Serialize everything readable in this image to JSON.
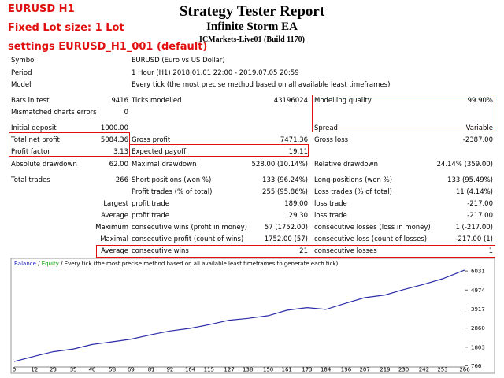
{
  "notes": [
    "EURUSD H1",
    "Fixed Lot size: 1 Lot",
    "settings EURUSD_H1_001 (default)"
  ],
  "header": {
    "title": "Strategy Tester Report",
    "subtitle": "Infinite Storm EA",
    "server": "ICMarkets-Live01 (Build 1170)"
  },
  "table": {
    "rows": [
      [
        "Symbol",
        null,
        "EURUSD (Euro vs US Dollar)",
        null,
        null,
        null
      ],
      [
        "Period",
        null,
        "1 Hour (H1) 2018.01.01 22:00 - 2019.07.05 20:59",
        null,
        null,
        null
      ],
      [
        "Model",
        null,
        "Every tick (the most precise method based on all available least timeframes)",
        null,
        null,
        null
      ],
      [
        "Bars in test",
        "9416",
        "Ticks modelled",
        "43196024",
        "Modelling quality",
        "99.90%"
      ],
      [
        "Mismatched charts errors",
        "0",
        null,
        null,
        null,
        null
      ],
      [
        "Initial deposit",
        "1000.00",
        null,
        null,
        "Spread",
        "Variable"
      ],
      [
        "Total net profit",
        "5084.36",
        "Gross profit",
        "7471.36",
        "Gross loss",
        "-2387.00"
      ],
      [
        "Profit factor",
        "3.13",
        "Expected payoff",
        "19.11",
        null,
        null
      ],
      [
        "Absolute drawdown",
        "62.00",
        "Maximal drawdown",
        "528.00 (10.14%)",
        "Relative drawdown",
        "24.14% (359.00)"
      ],
      [
        "Total trades",
        "266",
        "Short positions (won %)",
        "133 (96.24%)",
        "Long positions (won %)",
        "133 (95.49%)"
      ],
      [
        null,
        null,
        "Profit trades (% of total)",
        "255 (95.86%)",
        "Loss trades (% of total)",
        "11 (4.14%)"
      ],
      [
        null,
        "Largest",
        "profit trade",
        "189.00",
        "loss trade",
        "-217.00"
      ],
      [
        null,
        "Average",
        "profit trade",
        "29.30",
        "loss trade",
        "-217.00"
      ],
      [
        null,
        "Maximum",
        "consecutive wins (profit in money)",
        "57 (1752.00)",
        "consecutive losses (loss in money)",
        "1 (-217.00)"
      ],
      [
        null,
        "Maximal",
        "consecutive profit (count of wins)",
        "1752.00 (57)",
        "consecutive loss (count of losses)",
        "-217.00 (1)"
      ],
      [
        null,
        "Average",
        "consecutive wins",
        "21",
        "consecutive losses",
        "1"
      ]
    ]
  },
  "chart": {
    "type": "line",
    "legend": [
      {
        "text": "Balance",
        "color": "#2020c0"
      },
      {
        "text": " / ",
        "color": "#000000"
      },
      {
        "text": "Equity",
        "color": "#00a000"
      },
      {
        "text": " / Every tick (the most precise method based on all available least timeframes to generate each tick)",
        "color": "#000000"
      }
    ],
    "x": [
      0,
      12,
      23,
      35,
      46,
      58,
      69,
      81,
      92,
      104,
      115,
      127,
      138,
      150,
      161,
      173,
      184,
      196,
      207,
      219,
      230,
      242,
      253,
      266
    ],
    "series": [
      {
        "name": "Balance",
        "color": "#2c2ca8",
        "values": [
          1000,
          1300,
          1550,
          1700,
          1950,
          2100,
          2250,
          2500,
          2700,
          2850,
          3050,
          3300,
          3400,
          3550,
          3850,
          4000,
          3900,
          4250,
          4550,
          4700,
          5000,
          5300,
          5600,
          6084
        ]
      }
    ],
    "xlim": [
      0,
      266
    ],
    "xticks": [
      0,
      12,
      23,
      35,
      46,
      58,
      69,
      81,
      92,
      104,
      115,
      127,
      138,
      150,
      161,
      173,
      184,
      196,
      207,
      219,
      230,
      242,
      253,
      266
    ],
    "ylim": [
      700,
      6300
    ],
    "yticks": [
      766,
      1803,
      2860,
      3917,
      4974,
      6031
    ]
  }
}
